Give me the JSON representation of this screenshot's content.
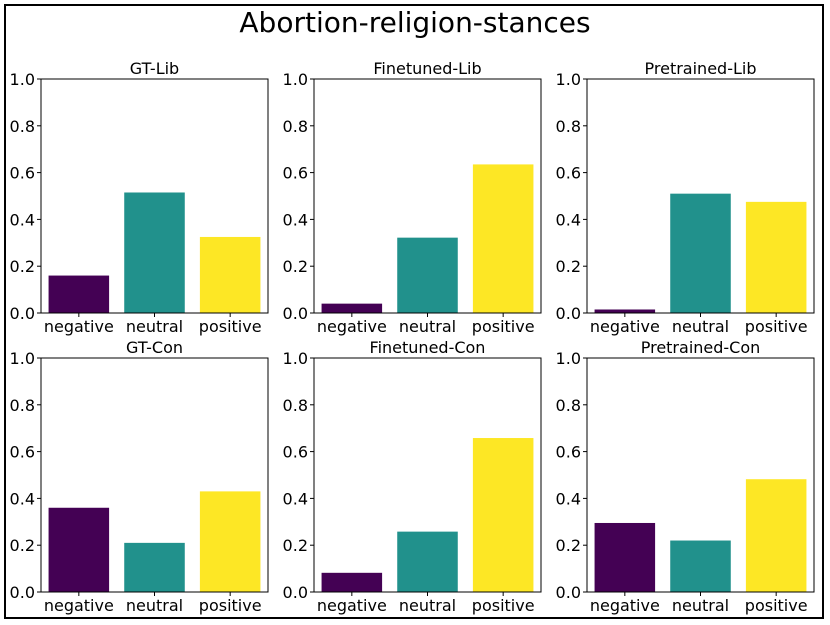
{
  "title": "Abortion-religion-stances",
  "colors": {
    "negative": "#440154",
    "neutral": "#21918c",
    "positive": "#fde725"
  },
  "chart_data": [
    {
      "type": "bar",
      "title": "GT-Lib",
      "categories": [
        "negative",
        "neutral",
        "positive"
      ],
      "values": [
        0.16,
        0.515,
        0.325
      ],
      "ylim": [
        0,
        1.0
      ],
      "yticks": [
        "0.0",
        "0.2",
        "0.4",
        "0.6",
        "0.8",
        "1.0"
      ]
    },
    {
      "type": "bar",
      "title": "Finetuned-Lib",
      "categories": [
        "negative",
        "neutral",
        "positive"
      ],
      "values": [
        0.04,
        0.322,
        0.635
      ],
      "ylim": [
        0,
        1.0
      ],
      "yticks": [
        "0.0",
        "0.2",
        "0.4",
        "0.6",
        "0.8",
        "1.0"
      ]
    },
    {
      "type": "bar",
      "title": "Pretrained-Lib",
      "categories": [
        "negative",
        "neutral",
        "positive"
      ],
      "values": [
        0.015,
        0.51,
        0.475
      ],
      "ylim": [
        0,
        1.0
      ],
      "yticks": [
        "0.0",
        "0.2",
        "0.4",
        "0.6",
        "0.8",
        "1.0"
      ]
    },
    {
      "type": "bar",
      "title": "GT-Con",
      "categories": [
        "negative",
        "neutral",
        "positive"
      ],
      "values": [
        0.36,
        0.21,
        0.43
      ],
      "ylim": [
        0,
        1.0
      ],
      "yticks": [
        "0.0",
        "0.2",
        "0.4",
        "0.6",
        "0.8",
        "1.0"
      ]
    },
    {
      "type": "bar",
      "title": "Finetuned-Con",
      "categories": [
        "negative",
        "neutral",
        "positive"
      ],
      "values": [
        0.082,
        0.258,
        0.658
      ],
      "ylim": [
        0,
        1.0
      ],
      "yticks": [
        "0.0",
        "0.2",
        "0.4",
        "0.6",
        "0.8",
        "1.0"
      ]
    },
    {
      "type": "bar",
      "title": "Pretrained-Con",
      "categories": [
        "negative",
        "neutral",
        "positive"
      ],
      "values": [
        0.295,
        0.22,
        0.482
      ],
      "ylim": [
        0,
        1.0
      ],
      "yticks": [
        "0.0",
        "0.2",
        "0.4",
        "0.6",
        "0.8",
        "1.0"
      ]
    }
  ]
}
